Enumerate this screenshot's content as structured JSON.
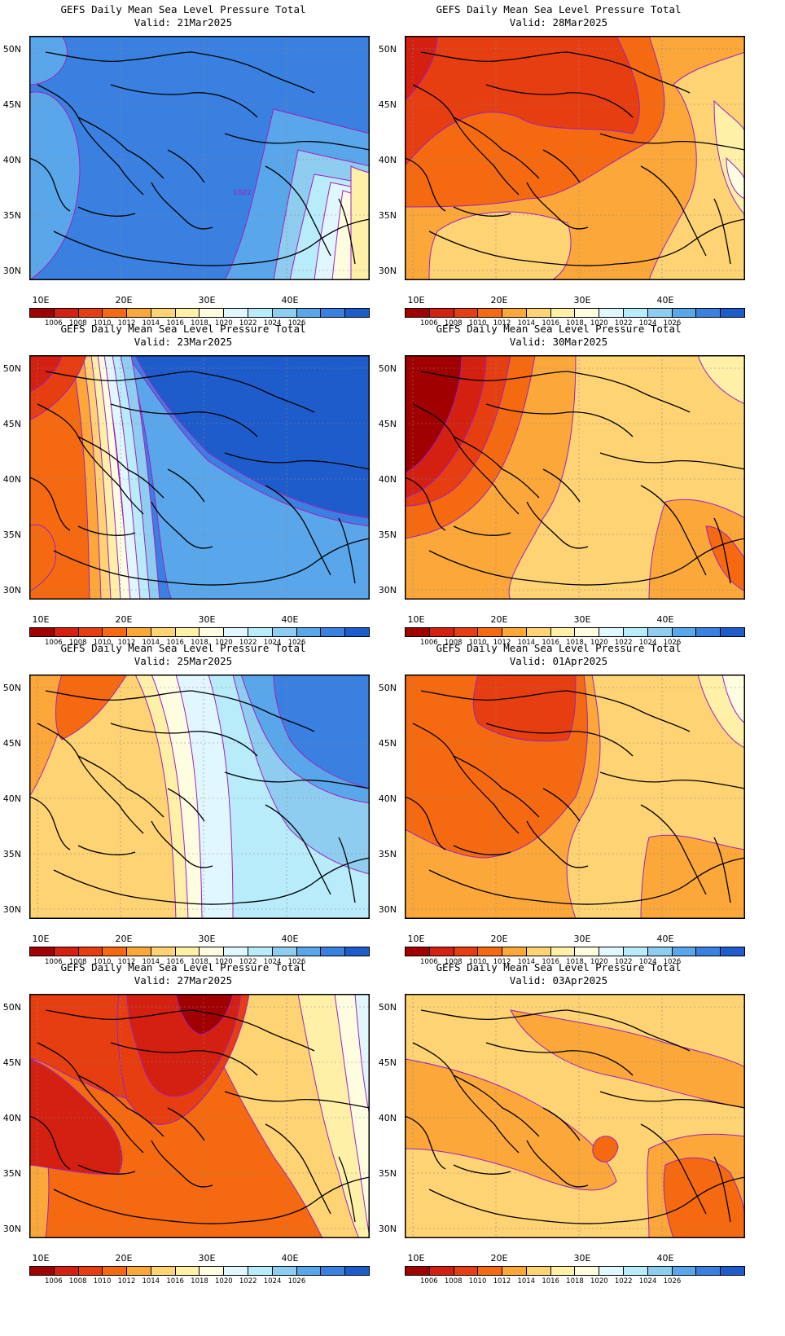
{
  "panels": [
    {
      "title": "GEFS Daily Mean Sea Level Pressure Total",
      "valid": "Valid: 21Mar2025",
      "scheme": "high1",
      "contour_label": "1022"
    },
    {
      "title": "GEFS Daily Mean Sea Level Pressure Total",
      "valid": "Valid: 28Mar2025",
      "scheme": "low1",
      "contour_label": ""
    },
    {
      "title": "GEFS Daily Mean Sea Level Pressure Total",
      "valid": "Valid: 23Mar2025",
      "scheme": "grad1",
      "contour_label": ""
    },
    {
      "title": "GEFS Daily Mean Sea Level Pressure Total",
      "valid": "Valid: 30Mar2025",
      "scheme": "low2",
      "contour_label": ""
    },
    {
      "title": "GEFS Daily Mean Sea Level Pressure Total",
      "valid": "Valid: 25Mar2025",
      "scheme": "grad2",
      "contour_label": ""
    },
    {
      "title": "GEFS Daily Mean Sea Level Pressure Total",
      "valid": "Valid: 01Apr2025",
      "scheme": "low3",
      "contour_label": ""
    },
    {
      "title": "GEFS Daily Mean Sea Level Pressure Total",
      "valid": "Valid: 27Mar2025",
      "scheme": "low4",
      "contour_label": ""
    },
    {
      "title": "GEFS Daily Mean Sea Level Pressure Total",
      "valid": "Valid: 03Apr2025",
      "scheme": "mild",
      "contour_label": ""
    }
  ],
  "axes": {
    "lat_labels": [
      "50N",
      "45N",
      "40N",
      "35N",
      "30N"
    ],
    "lon_labels": [
      "10E",
      "20E",
      "30E",
      "40E"
    ]
  },
  "colorbar": {
    "labels": [
      "1006",
      "1008",
      "1010",
      "1012",
      "1014",
      "1016",
      "1018",
      "1020",
      "1022",
      "1024",
      "1026"
    ],
    "colors": [
      "#a00000",
      "#d42010",
      "#e63e10",
      "#f56a10",
      "#fba73a",
      "#fdd374",
      "#fff0a8",
      "#fffde0",
      "#e0f7ff",
      "#b8ecfb",
      "#8ecdf0",
      "#5aa6ea",
      "#3a80e0",
      "#1e5ccc"
    ]
  },
  "contour_color": "#a020c0"
}
